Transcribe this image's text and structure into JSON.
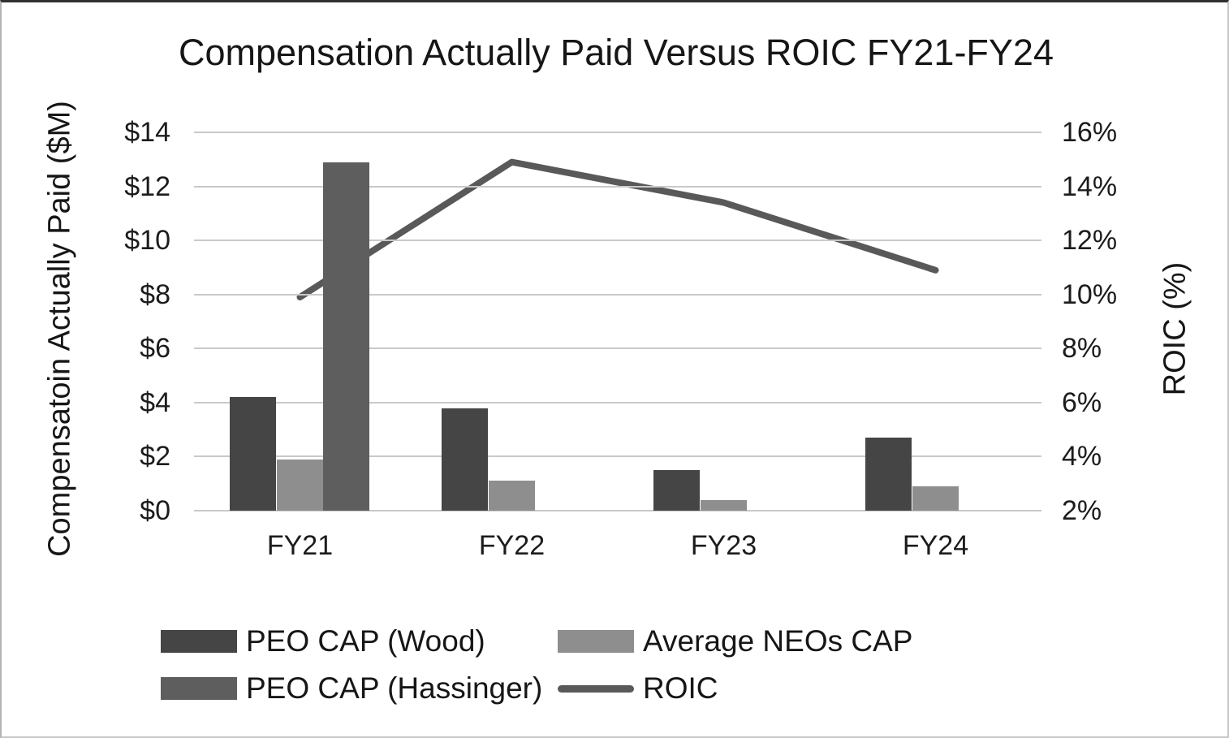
{
  "chart_data": {
    "type": "bar+line",
    "title": "Compensation Actually Paid Versus ROIC FY21-FY24",
    "ylabel_left": "Compensatoin Actually Paid ($M)",
    "ylabel_right": "ROIC (%)",
    "categories": [
      "FY21",
      "FY22",
      "FY23",
      "FY24"
    ],
    "series": [
      {
        "name": "PEO CAP (Wood)",
        "type": "bar",
        "color": "#454545",
        "values": [
          4.2,
          3.8,
          1.5,
          2.7
        ]
      },
      {
        "name": "Average NEOs CAP",
        "type": "bar",
        "color": "#8e8e8e",
        "values": [
          1.9,
          1.1,
          0.4,
          0.9
        ]
      },
      {
        "name": "PEO CAP (Hassinger)",
        "type": "bar",
        "color": "#5e5e5e",
        "values": [
          12.9,
          null,
          null,
          null
        ]
      }
    ],
    "line_series": {
      "name": "ROIC",
      "color": "#595959",
      "values": [
        9.9,
        14.9,
        13.4,
        10.9
      ]
    },
    "ylim_left": [
      0,
      14
    ],
    "ylim_right": [
      2,
      16
    ],
    "yticks_left": [
      "$14",
      "$12",
      "$10",
      "$8",
      "$6",
      "$4",
      "$2",
      "$0"
    ],
    "yticks_right": [
      "16%",
      "14%",
      "12%",
      "10%",
      "8%",
      "6%",
      "4%",
      "2%"
    ],
    "grid": true,
    "gridline_color": "#c9c9c9",
    "background_color": "#ffffff",
    "text_color": "#1c1c1c",
    "legend_position": "bottom-left",
    "legend": [
      {
        "label": "PEO CAP (Wood)",
        "swatch": "bar",
        "color": "#454545"
      },
      {
        "label": "Average NEOs CAP",
        "swatch": "bar",
        "color": "#8e8e8e"
      },
      {
        "label": "PEO CAP (Hassinger)",
        "swatch": "bar",
        "color": "#5e5e5e"
      },
      {
        "label": "ROIC",
        "swatch": "line",
        "color": "#595959"
      }
    ]
  }
}
